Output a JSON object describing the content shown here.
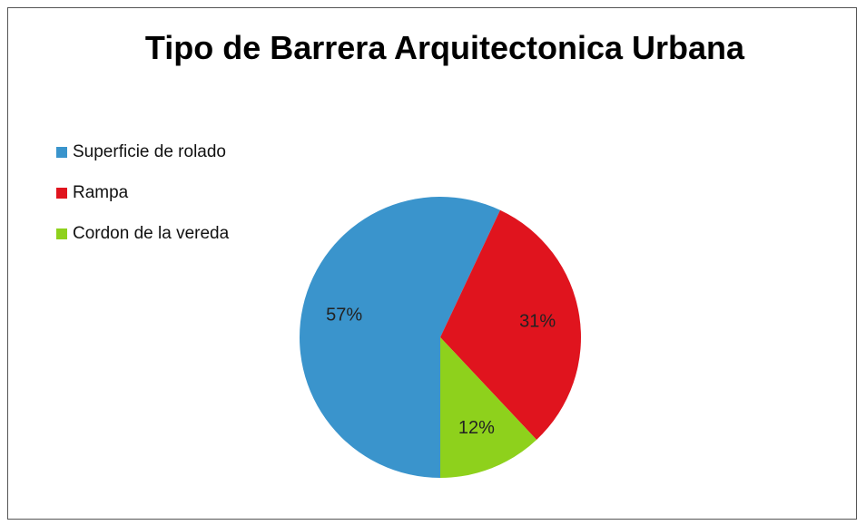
{
  "chart_data": {
    "type": "pie",
    "title": "Tipo de Barrera Arquitectonica Urbana",
    "categories": [
      "Superficie de rolado",
      "Rampa",
      "Cordon de la vereda"
    ],
    "values": [
      57,
      31,
      12
    ],
    "value_labels": [
      "57%",
      "31%",
      "12%"
    ],
    "colors": [
      "#3a94cc",
      "#e0141e",
      "#8ed11c"
    ],
    "legend": "left"
  }
}
